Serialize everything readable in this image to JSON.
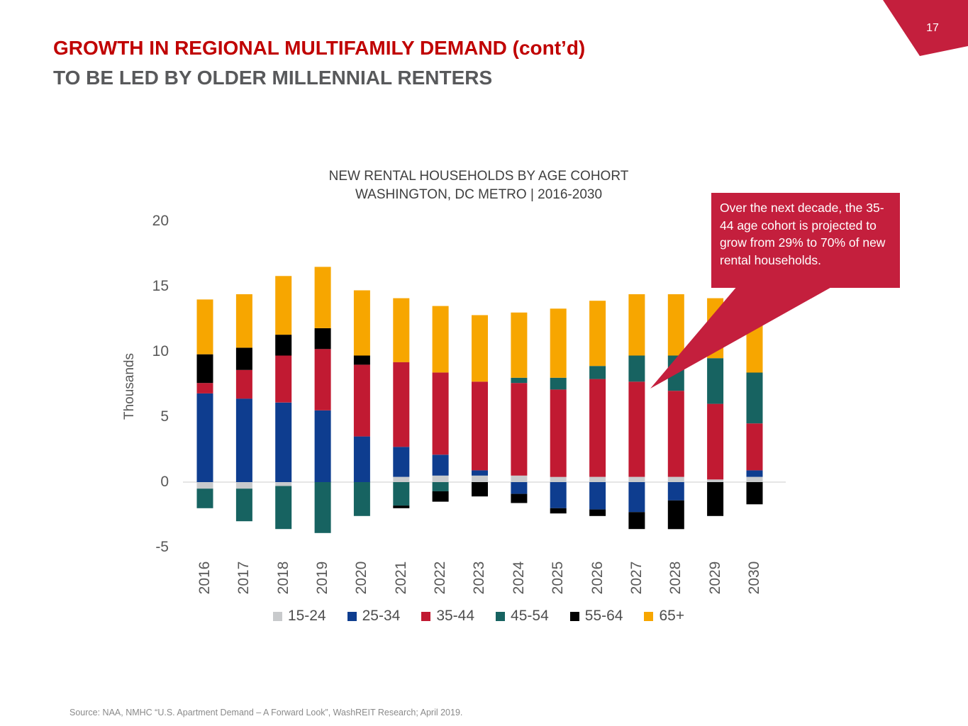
{
  "page": {
    "number": "17",
    "banner_color": "#C41F3D"
  },
  "header": {
    "title": "GROWTH IN REGIONAL MULTIFAMILY DEMAND (cont’d)",
    "subtitle": "TO BE LED BY OLDER MILLENNIAL RENTERS",
    "title_color": "#C00000",
    "subtitle_color": "#58595B"
  },
  "chart_data": {
    "type": "bar",
    "stacked": true,
    "title": "NEW RENTAL HOUSEHOLDS BY AGE COHORT",
    "subtitle": "WASHINGTON, DC METRO | 2016-2030",
    "ylabel": "Thousands",
    "ylim": [
      -5,
      20
    ],
    "yticks": [
      20,
      15,
      10,
      5,
      0,
      -5
    ],
    "grid": "zero-line-only",
    "legend_position": "bottom",
    "units": "thousands of households",
    "categories": [
      "2016",
      "2017",
      "2018",
      "2019",
      "2020",
      "2021",
      "2022",
      "2023",
      "2024",
      "2025",
      "2026",
      "2027",
      "2028",
      "2029",
      "2030"
    ],
    "series": [
      {
        "name": "15-24",
        "color": "#C8CACC",
        "values": [
          -0.5,
          -0.5,
          -0.3,
          0.0,
          0.0,
          0.4,
          0.5,
          0.5,
          0.5,
          0.4,
          0.4,
          0.4,
          0.4,
          0.2,
          0.4
        ]
      },
      {
        "name": "25-34",
        "color": "#0E3D8F",
        "values": [
          6.8,
          6.4,
          6.1,
          5.5,
          3.5,
          2.3,
          1.6,
          0.4,
          -0.9,
          -2.0,
          -2.1,
          -2.3,
          -1.4,
          0.0,
          0.5
        ]
      },
      {
        "name": "35-44",
        "color": "#C11A32",
        "values": [
          0.8,
          2.2,
          3.6,
          4.7,
          5.5,
          6.5,
          6.3,
          6.8,
          7.1,
          6.7,
          7.5,
          7.3,
          6.6,
          5.8,
          3.6
        ]
      },
      {
        "name": "45-54",
        "color": "#176361",
        "values": [
          -1.5,
          -2.5,
          -3.3,
          -3.9,
          -2.6,
          -1.8,
          -0.7,
          0.0,
          0.4,
          0.9,
          1.0,
          2.0,
          2.7,
          3.5,
          3.9
        ]
      },
      {
        "name": "55-64",
        "color": "#000000",
        "values": [
          2.2,
          1.7,
          1.6,
          1.6,
          0.7,
          -0.2,
          -0.8,
          -1.1,
          -0.7,
          -0.4,
          -0.5,
          -1.3,
          -2.2,
          -2.6,
          -1.7
        ]
      },
      {
        "name": "65+",
        "color": "#F7A600",
        "values": [
          4.2,
          4.1,
          4.5,
          4.7,
          5.0,
          4.9,
          5.1,
          5.1,
          5.0,
          5.3,
          5.0,
          4.7,
          4.7,
          4.6,
          4.2
        ]
      }
    ]
  },
  "callout": {
    "text": "Over the next decade, the 35-44 age cohort is projected to grow from 29% to 70% of new rental households.",
    "color": "#C41F3D"
  },
  "footer": {
    "source": "Source: NAA, NMHC “U.S. Apartment Demand – A Forward Look”, WashREIT Research; April 2019."
  }
}
